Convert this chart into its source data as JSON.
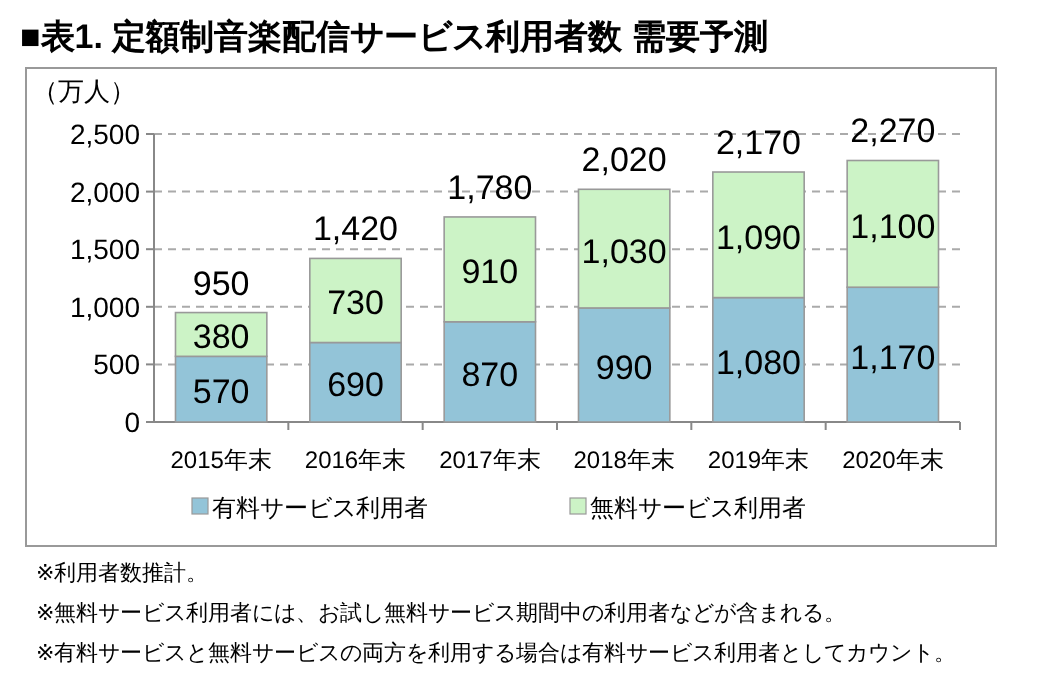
{
  "chart_data": {
    "type": "bar",
    "stacked": true,
    "title": "■表1. 定額制音楽配信サービス利用者数 需要予測",
    "ylabel": "（万人）",
    "categories": [
      "2015年末",
      "2016年末",
      "2017年末",
      "2018年末",
      "2019年末",
      "2020年末"
    ],
    "series": [
      {
        "name": "有料サービス利用者",
        "color": "#93c4d8",
        "values": [
          570,
          690,
          870,
          990,
          1080,
          1170
        ],
        "value_labels": [
          "570",
          "690",
          "870",
          "990",
          "1,080",
          "1,170"
        ]
      },
      {
        "name": "無料サービス利用者",
        "color": "#ccf3c6",
        "values": [
          380,
          730,
          910,
          1030,
          1090,
          1100
        ],
        "value_labels": [
          "380",
          "730",
          "910",
          "1,030",
          "1,090",
          "1,100"
        ]
      }
    ],
    "ylim": [
      0,
      2500
    ],
    "yticks": [
      0,
      {
        "value": 500,
        "label": "500"
      },
      {
        "value": 1000,
        "label": "1,000"
      },
      {
        "value": 1500,
        "label": "1,500"
      },
      {
        "value": 2000,
        "label": "2,000"
      },
      {
        "value": 2500,
        "label": "2,500"
      }
    ],
    "grid": "y",
    "legend": "bottom",
    "totals": [
      "950",
      "1,420",
      "1,780",
      "2,020",
      "2,170",
      "2,270"
    ],
    "annotations": [
      "※利用者数推計。",
      "※無料サービス利用者には、お試し無料サービス期間中の利用者などが含まれる。",
      "※有料サービスと無料サービスの両方を利用する場合は有料サービス利用者としてカウント。"
    ]
  }
}
